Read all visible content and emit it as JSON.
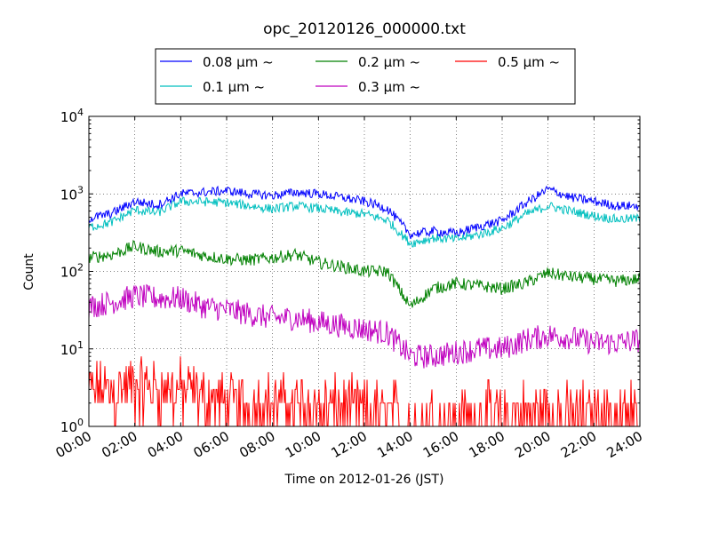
{
  "chart_data": {
    "type": "line",
    "title": "opc_20120126_000000.txt",
    "xlabel": "Time on 2012-01-26 (JST)",
    "ylabel": "Count",
    "yscale": "log",
    "ylim": [
      1,
      10000
    ],
    "xlim": [
      "00:00",
      "24:00"
    ],
    "x_tick_labels": [
      "00:00",
      "02:00",
      "04:00",
      "06:00",
      "08:00",
      "10:00",
      "12:00",
      "14:00",
      "16:00",
      "18:00",
      "20:00",
      "22:00",
      "24:00"
    ],
    "y_tick_labels": [
      {
        "base": "10",
        "exp": "0"
      },
      {
        "base": "10",
        "exp": "1"
      },
      {
        "base": "10",
        "exp": "2"
      },
      {
        "base": "10",
        "exp": "3"
      },
      {
        "base": "10",
        "exp": "4"
      }
    ],
    "grid": true,
    "legend_position": "top",
    "x": [
      "00:00",
      "01:00",
      "02:00",
      "03:00",
      "04:00",
      "05:00",
      "06:00",
      "07:00",
      "08:00",
      "09:00",
      "10:00",
      "11:00",
      "12:00",
      "13:00",
      "14:00",
      "15:00",
      "16:00",
      "17:00",
      "18:00",
      "19:00",
      "20:00",
      "21:00",
      "22:00",
      "23:00",
      "24:00"
    ],
    "series": [
      {
        "name": "0.08 μm ~",
        "color": "#0000ff",
        "values": [
          480,
          560,
          800,
          720,
          1000,
          1050,
          1100,
          1000,
          950,
          1050,
          1000,
          900,
          800,
          650,
          300,
          330,
          310,
          380,
          450,
          750,
          1150,
          900,
          800,
          700,
          700
        ]
      },
      {
        "name": "0.1 μm ~",
        "color": "#00bfbf",
        "values": [
          370,
          430,
          620,
          570,
          800,
          790,
          770,
          700,
          640,
          700,
          650,
          580,
          550,
          460,
          230,
          270,
          260,
          300,
          360,
          540,
          700,
          600,
          520,
          470,
          480
        ]
      },
      {
        "name": "0.2 μm ~",
        "color": "#008000",
        "values": [
          150,
          165,
          210,
          180,
          185,
          160,
          145,
          140,
          150,
          165,
          130,
          115,
          100,
          100,
          35,
          60,
          70,
          65,
          60,
          70,
          95,
          85,
          80,
          75,
          80
        ]
      },
      {
        "name": "0.3 μm ~",
        "color": "#bf00bf",
        "values": [
          35,
          40,
          48,
          45,
          45,
          35,
          32,
          28,
          25,
          25,
          22,
          20,
          18,
          16,
          8,
          8,
          9,
          10,
          10,
          13,
          15,
          14,
          12,
          12,
          13
        ]
      },
      {
        "name": "0.5 μm ~",
        "color": "#ff0000",
        "values": [
          3,
          3,
          3.5,
          3,
          3,
          2.5,
          2,
          2,
          2,
          2,
          1.8,
          1.8,
          1.6,
          1.6,
          1.3,
          1.3,
          1.3,
          1.4,
          1.4,
          1.5,
          1.6,
          1.5,
          1.5,
          1.5,
          1.5
        ]
      }
    ]
  }
}
